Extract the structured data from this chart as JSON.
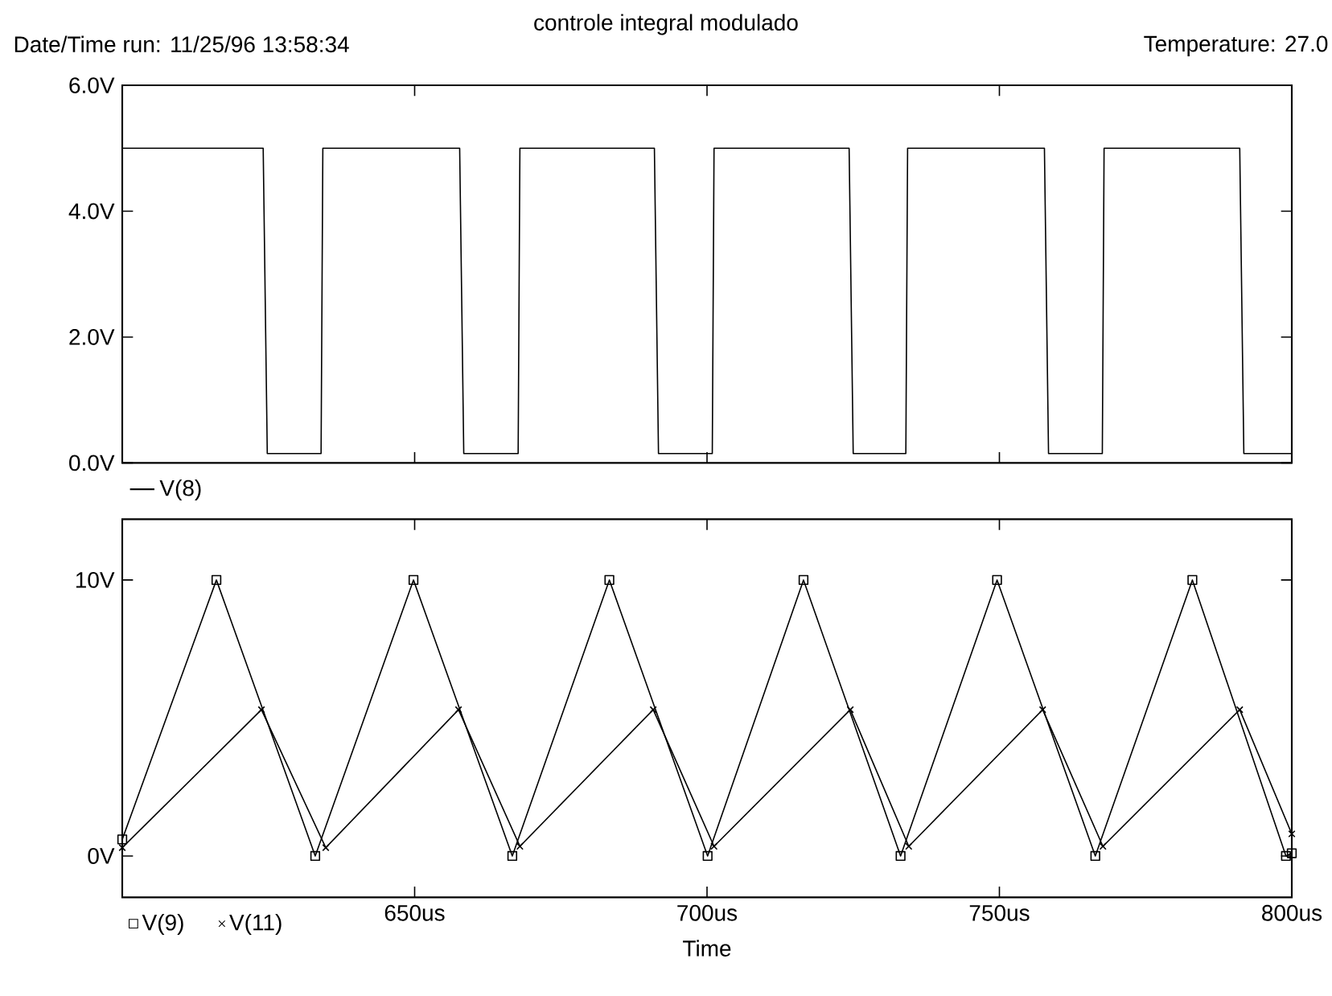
{
  "chart_data": [
    {
      "type": "line",
      "title": "controle integral modulado",
      "annotations": [
        "Date/Time run: 11/25/96  13:58:34",
        "Temperature: 27.0"
      ],
      "xlim": [
        600,
        800
      ],
      "xticks": [
        {
          "value": 650,
          "label": null
        },
        {
          "value": 700,
          "label": null
        },
        {
          "value": 750,
          "label": null
        }
      ],
      "ylim": [
        0,
        6
      ],
      "yticks": [
        {
          "value": 0,
          "label": "0.0V"
        },
        {
          "value": 2,
          "label": "2.0V"
        },
        {
          "value": 4,
          "label": "4.0V"
        },
        {
          "value": 6,
          "label": "6.0V"
        }
      ],
      "tick_labels": "y",
      "legend": "bottom left",
      "grid": false,
      "series": [
        {
          "name": "V(8)",
          "color": "#000000",
          "marker": "none",
          "x": [
            600,
            624.1,
            624.8,
            634.0,
            634.3,
            657.7,
            658.4,
            667.7,
            668.0,
            691.0,
            691.7,
            700.9,
            701.2,
            724.3,
            725.0,
            734.0,
            734.3,
            757.7,
            758.4,
            767.6,
            767.9,
            791.1,
            791.8,
            800
          ],
          "values": [
            5.0,
            5.0,
            0.15,
            0.15,
            5.0,
            5.0,
            0.15,
            0.15,
            5.0,
            5.0,
            0.15,
            0.15,
            5.0,
            5.0,
            0.15,
            0.15,
            5.0,
            5.0,
            0.15,
            0.15,
            5.0,
            5.0,
            0.15,
            0.15
          ]
        }
      ]
    },
    {
      "type": "line",
      "xlabel": "Time",
      "xlim": [
        600,
        800
      ],
      "xticks": [
        {
          "value": 650,
          "label": "650us"
        },
        {
          "value": 700,
          "label": "700us"
        },
        {
          "value": 750,
          "label": "750us"
        },
        {
          "value": 800,
          "label": "800us"
        }
      ],
      "ylim": [
        -1.5,
        12.2
      ],
      "yticks": [
        {
          "value": 0,
          "label": "0V"
        },
        {
          "value": 10,
          "label": "10V"
        }
      ],
      "legend": "bottom left",
      "grid": false,
      "series": [
        {
          "name": "V(9)",
          "color": "#000000",
          "marker": "square",
          "x": [
            600,
            616.1,
            633.0,
            649.8,
            666.7,
            683.3,
            700.1,
            716.5,
            733.1,
            749.6,
            766.4,
            783.0,
            799.0,
            800
          ],
          "values": [
            0.6,
            10,
            0,
            10,
            0,
            10,
            0,
            10,
            0,
            10,
            0,
            10,
            0,
            0.1
          ]
        },
        {
          "name": "V(11)",
          "color": "#000000",
          "marker": "cross",
          "x": [
            600,
            623.8,
            634.8,
            657.5,
            668.0,
            690.8,
            701.2,
            724.5,
            734.5,
            757.4,
            767.7,
            791.1,
            800
          ],
          "values": [
            0.3,
            5.3,
            0.3,
            5.3,
            0.35,
            5.3,
            0.35,
            5.3,
            0.35,
            5.3,
            0.35,
            5.3,
            0.8
          ]
        }
      ]
    }
  ]
}
